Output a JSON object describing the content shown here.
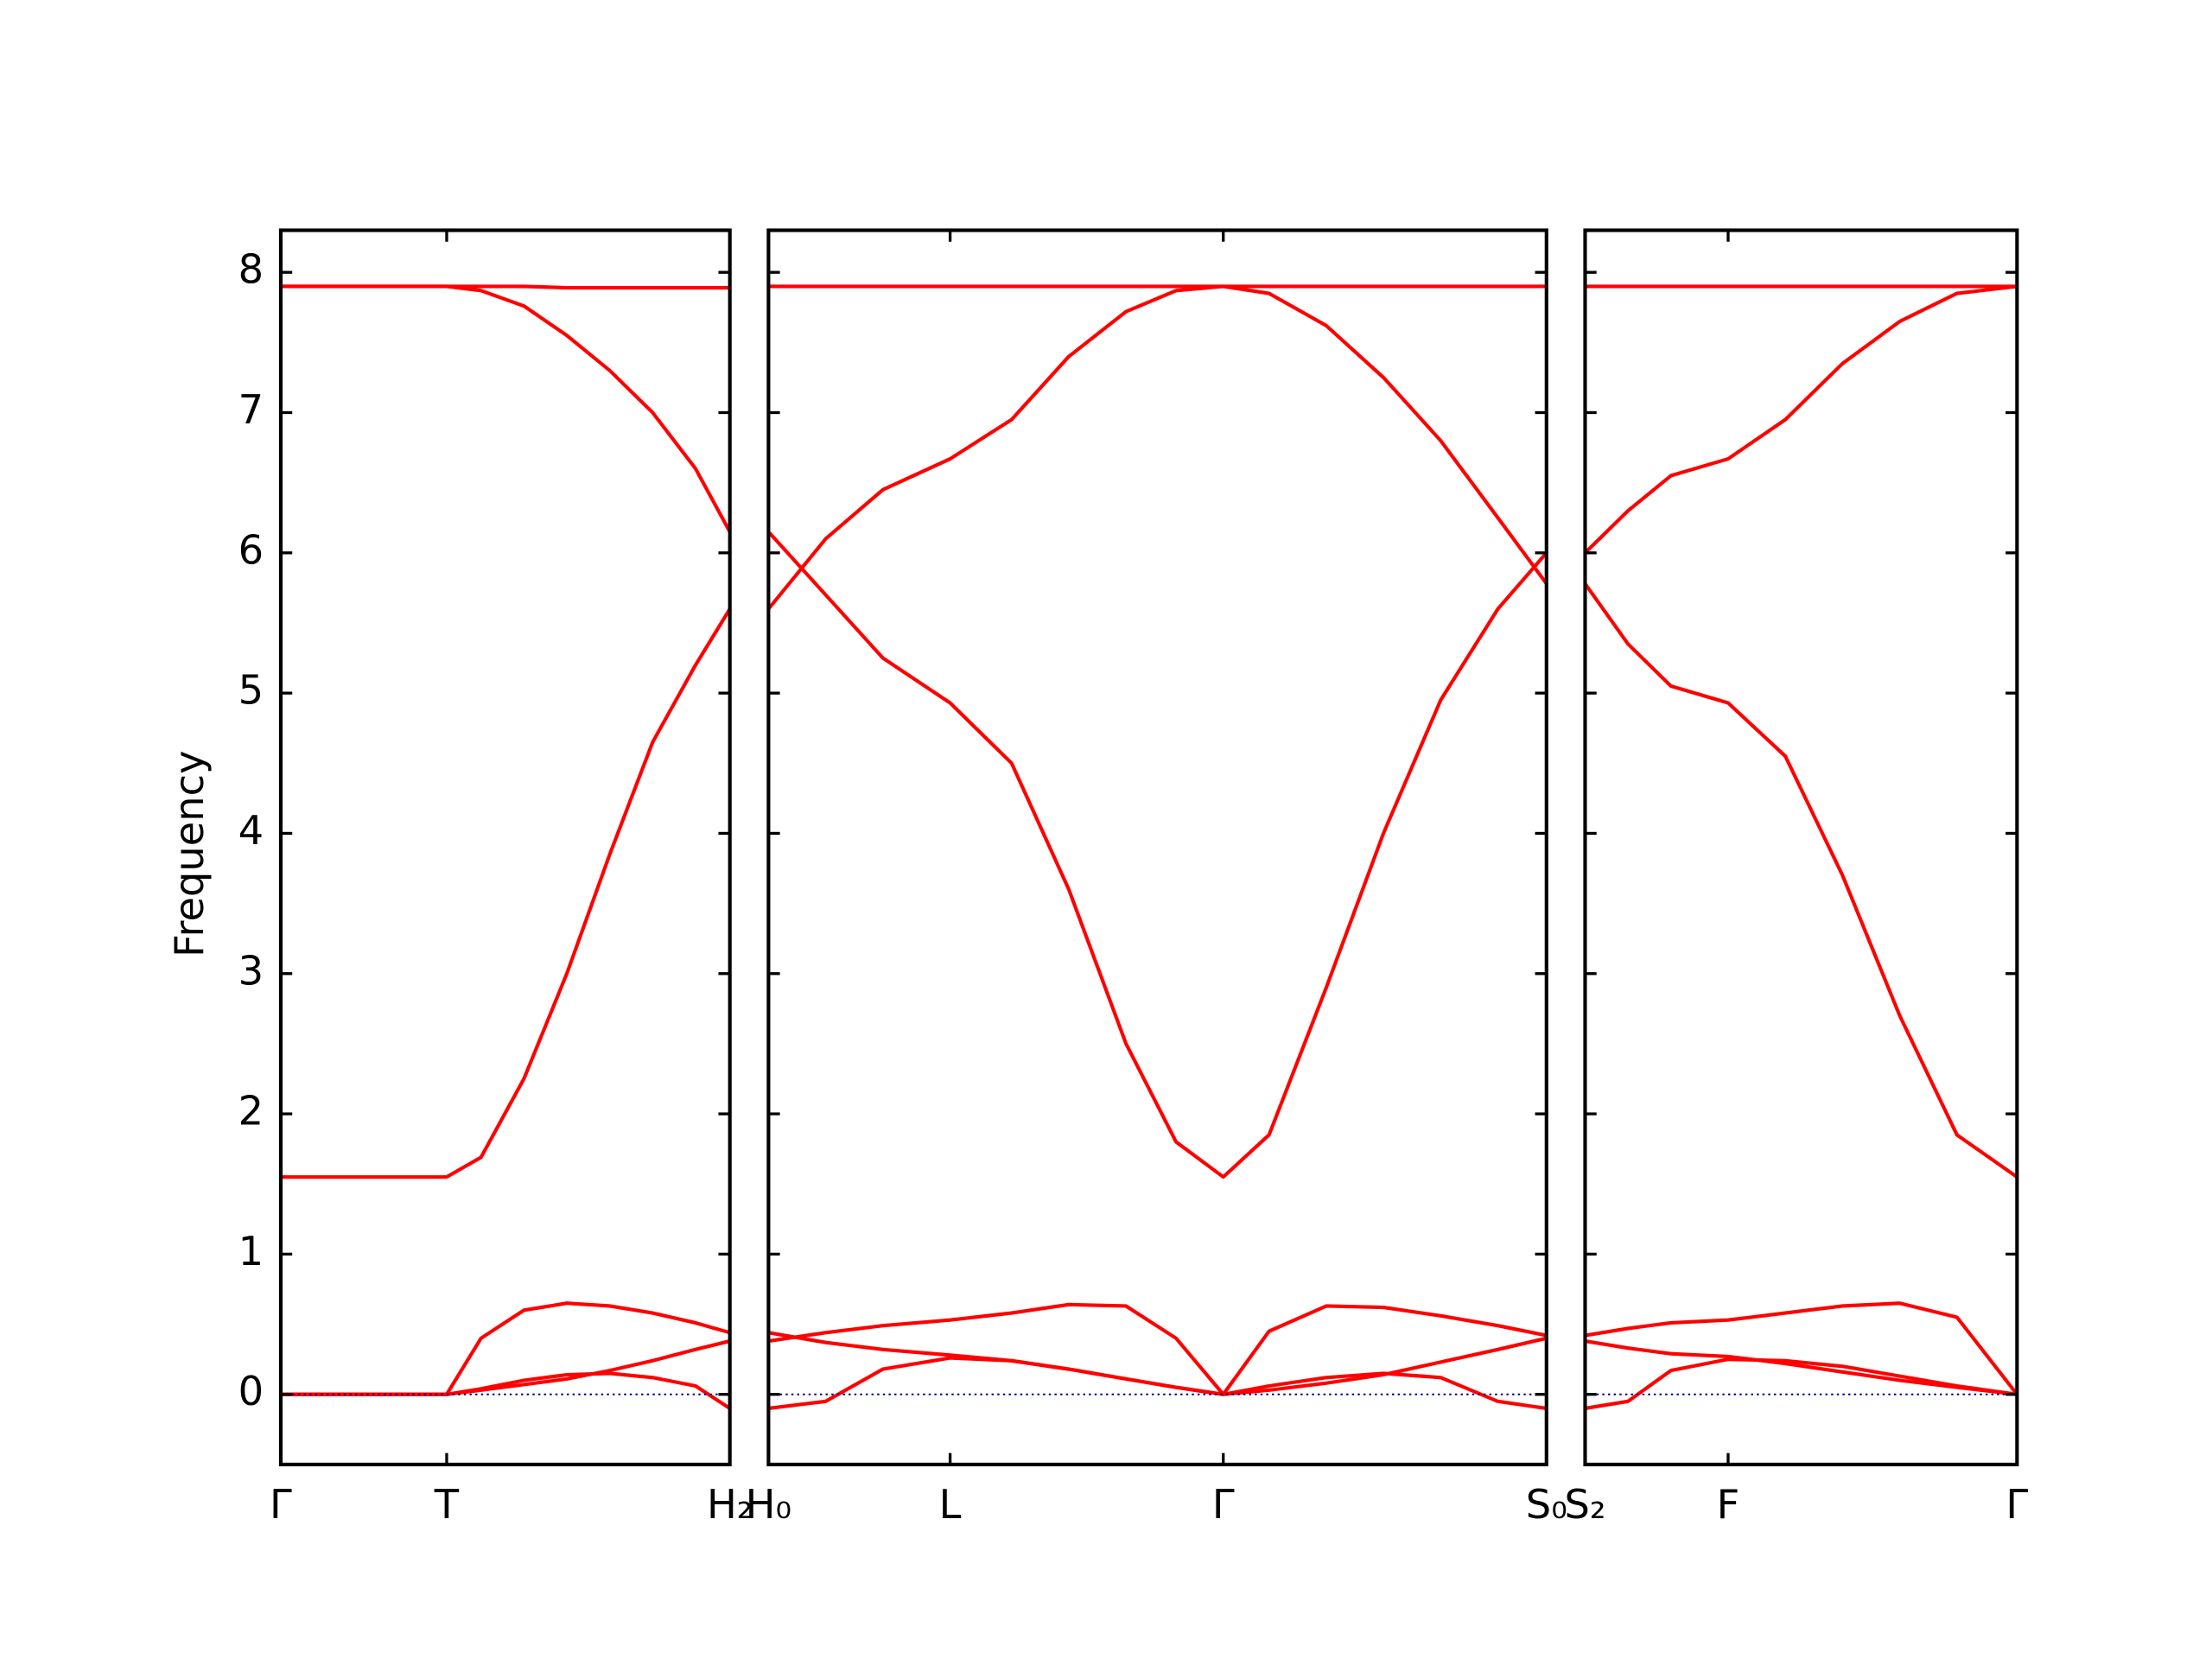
{
  "chart_data": [
    {
      "type": "line",
      "ylabel": "Frequency",
      "x": [
        0,
        1.16,
        1.4,
        1.7,
        2.0,
        2.3,
        2.6,
        2.9,
        3.14
      ],
      "xlim": [
        0,
        3.14
      ],
      "xticks": [
        {
          "value": 0,
          "label": "Γ"
        },
        {
          "value": 1.16,
          "label": "T"
        },
        {
          "value": 3.14,
          "label": "H₂"
        }
      ],
      "ylim": [
        -0.5,
        8.3
      ],
      "yticks": [
        0,
        1,
        2,
        3,
        4,
        5,
        6,
        7,
        8
      ],
      "series": [
        {
          "color": "#ff0000",
          "values": [
            7.9,
            7.9,
            7.9,
            7.9,
            7.89,
            7.89,
            7.89,
            7.89,
            7.89
          ]
        },
        {
          "color": "#ff0000",
          "values": [
            7.9,
            7.9,
            7.87,
            7.76,
            7.55,
            7.3,
            7.0,
            6.6,
            6.15
          ]
        },
        {
          "color": "#ff0000",
          "values": [
            1.55,
            1.55,
            1.69,
            2.25,
            3.0,
            3.85,
            4.65,
            5.2,
            5.6
          ]
        },
        {
          "color": "#ff0000",
          "values": [
            0,
            0,
            0.4,
            0.6,
            0.65,
            0.63,
            0.58,
            0.51,
            0.44
          ]
        },
        {
          "color": "#ff0000",
          "values": [
            0,
            0,
            0.03,
            0.07,
            0.11,
            0.17,
            0.24,
            0.32,
            0.38
          ]
        },
        {
          "color": "#ff0000",
          "values": [
            0,
            0,
            0.04,
            0.1,
            0.14,
            0.15,
            0.12,
            0.06,
            -0.1
          ]
        },
        {
          "color": "#00008b",
          "linestyle": "dotted",
          "values": [
            0,
            0,
            0,
            0,
            0,
            0,
            0,
            0,
            0
          ]
        }
      ]
    },
    {
      "type": "line",
      "x": [
        0,
        0.4,
        0.8,
        1.27,
        1.7,
        2.1,
        2.5,
        2.85,
        3.18,
        3.5,
        3.9,
        4.3,
        4.7,
        5.1,
        5.44
      ],
      "xlim": [
        0,
        5.44
      ],
      "xticks": [
        {
          "value": 0,
          "label": "H₀"
        },
        {
          "value": 1.27,
          "label": "L"
        },
        {
          "value": 3.18,
          "label": "Γ"
        },
        {
          "value": 5.44,
          "label": "S₀"
        }
      ],
      "ylim": [
        -0.5,
        8.3
      ],
      "yticks": [
        0,
        1,
        2,
        3,
        4,
        5,
        6,
        7,
        8
      ],
      "series": [
        {
          "color": "#ff0000",
          "values": [
            7.9,
            7.9,
            7.9,
            7.9,
            7.9,
            7.9,
            7.9,
            7.9,
            7.9,
            7.9,
            7.9,
            7.9,
            7.9,
            7.9,
            7.9
          ]
        },
        {
          "color": "#ff0000",
          "values": [
            5.6,
            6.1,
            6.45,
            6.67,
            6.95,
            7.4,
            7.72,
            7.87,
            7.9,
            7.85,
            7.62,
            7.25,
            6.8,
            6.25,
            5.78
          ]
        },
        {
          "color": "#ff0000",
          "values": [
            6.15,
            5.7,
            5.25,
            4.93,
            4.5,
            3.6,
            2.5,
            1.8,
            1.55,
            1.85,
            2.9,
            4.0,
            4.95,
            5.6,
            6.0
          ]
        },
        {
          "color": "#ff0000",
          "values": [
            0.38,
            0.44,
            0.49,
            0.53,
            0.58,
            0.64,
            0.63,
            0.4,
            0,
            0.45,
            0.63,
            0.62,
            0.56,
            0.49,
            0.42
          ]
        },
        {
          "color": "#ff0000",
          "values": [
            0.44,
            0.37,
            0.32,
            0.28,
            0.24,
            0.18,
            0.11,
            0.05,
            0,
            0.03,
            0.08,
            0.14,
            0.23,
            0.32,
            0.4
          ]
        },
        {
          "color": "#ff0000",
          "values": [
            -0.1,
            -0.05,
            0.18,
            0.26,
            0.24,
            0.18,
            0.11,
            0.05,
            0,
            0.06,
            0.12,
            0.15,
            0.12,
            -0.05,
            -0.1
          ]
        },
        {
          "color": "#00008b",
          "linestyle": "dotted",
          "values": [
            0,
            0,
            0,
            0,
            0,
            0,
            0,
            0,
            0,
            0,
            0,
            0,
            0,
            0,
            0
          ]
        }
      ]
    },
    {
      "type": "line",
      "x": [
        0,
        0.3,
        0.6,
        1.0,
        1.4,
        1.8,
        2.2,
        2.6,
        3.02
      ],
      "xlim": [
        0,
        3.02
      ],
      "xticks": [
        {
          "value": 0,
          "label": "S₂"
        },
        {
          "value": 1.0,
          "label": "F"
        },
        {
          "value": 3.02,
          "label": "Γ"
        }
      ],
      "ylim": [
        -0.5,
        8.3
      ],
      "yticks": [
        0,
        1,
        2,
        3,
        4,
        5,
        6,
        7,
        8
      ],
      "series": [
        {
          "color": "#ff0000",
          "values": [
            7.9,
            7.9,
            7.9,
            7.9,
            7.9,
            7.9,
            7.9,
            7.9,
            7.9
          ]
        },
        {
          "color": "#ff0000",
          "values": [
            6.0,
            6.3,
            6.55,
            6.67,
            6.95,
            7.35,
            7.65,
            7.85,
            7.9
          ]
        },
        {
          "color": "#ff0000",
          "values": [
            5.78,
            5.35,
            5.05,
            4.93,
            4.55,
            3.7,
            2.7,
            1.85,
            1.55
          ]
        },
        {
          "color": "#ff0000",
          "values": [
            0.42,
            0.47,
            0.51,
            0.53,
            0.58,
            0.63,
            0.65,
            0.55,
            0
          ]
        },
        {
          "color": "#ff0000",
          "values": [
            0.38,
            0.33,
            0.29,
            0.27,
            0.22,
            0.16,
            0.1,
            0.05,
            0
          ]
        },
        {
          "color": "#ff0000",
          "values": [
            -0.1,
            -0.05,
            0.17,
            0.25,
            0.24,
            0.2,
            0.13,
            0.06,
            0
          ]
        },
        {
          "color": "#00008b",
          "linestyle": "dotted",
          "values": [
            0,
            0,
            0,
            0,
            0,
            0,
            0,
            0,
            0
          ]
        }
      ]
    }
  ]
}
